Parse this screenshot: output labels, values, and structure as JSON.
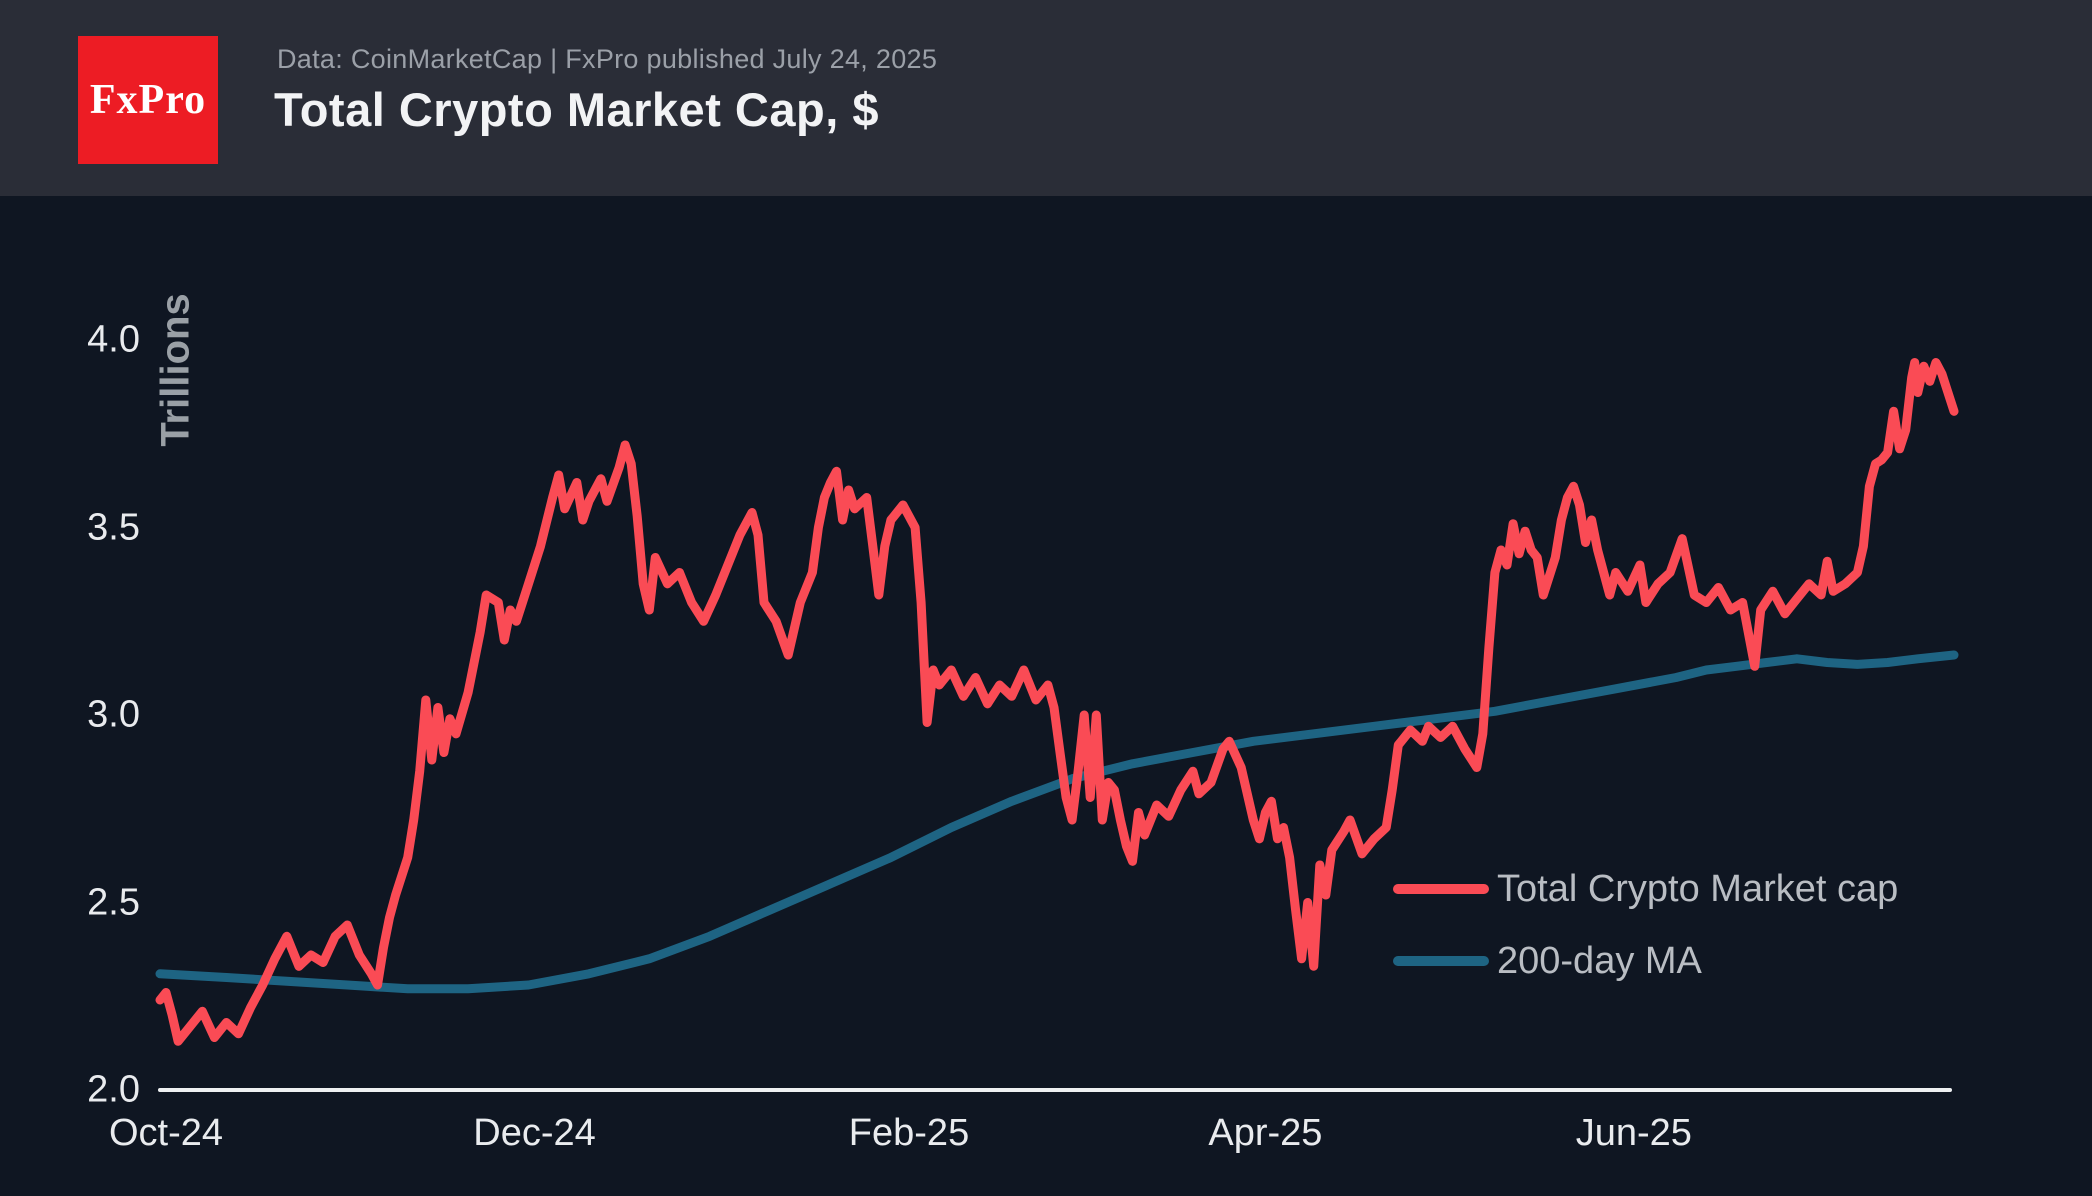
{
  "header": {
    "logo_text": "FxPro",
    "source_line": "Data: CoinMarketCap  |  FxPro published July 24, 2025",
    "title": "Total Crypto Market Cap, $"
  },
  "colors": {
    "header_bg": "#2a2d37",
    "chart_bg": "#0f1622",
    "logo_red": "#ed1c24",
    "market_cap_line": "#fa4b55",
    "ma_line": "#1e6483",
    "axis_line": "#eef0f2",
    "tick_text": "#e9ebee",
    "legend_text": "#b9bdc3"
  },
  "chart_data": {
    "type": "line",
    "title": "Total Crypto Market Cap, $",
    "ylabel": "Trillions",
    "x_unit": "days since Oct 1, 2024",
    "x_range_days": [
      -1,
      296
    ],
    "ylim": [
      2.0,
      4.0
    ],
    "grid": false,
    "legend_position": "lower right",
    "yticks": [
      {
        "label": "2.0",
        "value": 2.0
      },
      {
        "label": "2.5",
        "value": 2.5
      },
      {
        "label": "3.0",
        "value": 3.0
      },
      {
        "label": "3.5",
        "value": 3.5
      },
      {
        "label": "4.0",
        "value": 4.0
      }
    ],
    "xticks": [
      {
        "label": "Oct-24",
        "day": 0
      },
      {
        "label": "Dec-24",
        "day": 61
      },
      {
        "label": "Feb-25",
        "day": 123
      },
      {
        "label": "Apr-25",
        "day": 182
      },
      {
        "label": "Jun-25",
        "day": 243
      }
    ],
    "series": [
      {
        "name": "Total Crypto Market cap",
        "color": "#fa4b55",
        "width": 9,
        "points": [
          [
            -1,
            2.24
          ],
          [
            0,
            2.26
          ],
          [
            1,
            2.2
          ],
          [
            2,
            2.13
          ],
          [
            4,
            2.17
          ],
          [
            6,
            2.21
          ],
          [
            8,
            2.14
          ],
          [
            10,
            2.18
          ],
          [
            12,
            2.15
          ],
          [
            14,
            2.22
          ],
          [
            16,
            2.28
          ],
          [
            18,
            2.35
          ],
          [
            20,
            2.41
          ],
          [
            22,
            2.33
          ],
          [
            24,
            2.36
          ],
          [
            26,
            2.34
          ],
          [
            28,
            2.41
          ],
          [
            30,
            2.44
          ],
          [
            32,
            2.36
          ],
          [
            34,
            2.31
          ],
          [
            35,
            2.28
          ],
          [
            36,
            2.38
          ],
          [
            37,
            2.46
          ],
          [
            38,
            2.52
          ],
          [
            40,
            2.62
          ],
          [
            41,
            2.72
          ],
          [
            42,
            2.85
          ],
          [
            43,
            3.04
          ],
          [
            44,
            2.88
          ],
          [
            45,
            3.02
          ],
          [
            46,
            2.9
          ],
          [
            47,
            2.99
          ],
          [
            48,
            2.95
          ],
          [
            50,
            3.06
          ],
          [
            52,
            3.22
          ],
          [
            53,
            3.32
          ],
          [
            55,
            3.3
          ],
          [
            56,
            3.2
          ],
          [
            57,
            3.28
          ],
          [
            58,
            3.25
          ],
          [
            60,
            3.35
          ],
          [
            62,
            3.45
          ],
          [
            64,
            3.58
          ],
          [
            65,
            3.64
          ],
          [
            66,
            3.55
          ],
          [
            68,
            3.62
          ],
          [
            69,
            3.52
          ],
          [
            70,
            3.57
          ],
          [
            72,
            3.63
          ],
          [
            73,
            3.57
          ],
          [
            75,
            3.66
          ],
          [
            76,
            3.72
          ],
          [
            77,
            3.67
          ],
          [
            78,
            3.53
          ],
          [
            79,
            3.35
          ],
          [
            80,
            3.28
          ],
          [
            81,
            3.42
          ],
          [
            83,
            3.35
          ],
          [
            85,
            3.38
          ],
          [
            87,
            3.3
          ],
          [
            89,
            3.25
          ],
          [
            91,
            3.32
          ],
          [
            93,
            3.4
          ],
          [
            95,
            3.48
          ],
          [
            97,
            3.54
          ],
          [
            98,
            3.48
          ],
          [
            99,
            3.3
          ],
          [
            101,
            3.25
          ],
          [
            103,
            3.16
          ],
          [
            105,
            3.3
          ],
          [
            107,
            3.38
          ],
          [
            108,
            3.5
          ],
          [
            109,
            3.58
          ],
          [
            110,
            3.62
          ],
          [
            111,
            3.65
          ],
          [
            112,
            3.52
          ],
          [
            113,
            3.6
          ],
          [
            114,
            3.55
          ],
          [
            116,
            3.58
          ],
          [
            117,
            3.45
          ],
          [
            118,
            3.32
          ],
          [
            119,
            3.45
          ],
          [
            120,
            3.52
          ],
          [
            122,
            3.56
          ],
          [
            124,
            3.5
          ],
          [
            125,
            3.3
          ],
          [
            126,
            2.98
          ],
          [
            127,
            3.12
          ],
          [
            128,
            3.08
          ],
          [
            130,
            3.12
          ],
          [
            132,
            3.05
          ],
          [
            134,
            3.1
          ],
          [
            136,
            3.03
          ],
          [
            138,
            3.08
          ],
          [
            140,
            3.05
          ],
          [
            142,
            3.12
          ],
          [
            144,
            3.04
          ],
          [
            146,
            3.08
          ],
          [
            147,
            3.02
          ],
          [
            148,
            2.9
          ],
          [
            149,
            2.78
          ],
          [
            150,
            2.72
          ],
          [
            151,
            2.85
          ],
          [
            152,
            3.0
          ],
          [
            153,
            2.78
          ],
          [
            154,
            3.0
          ],
          [
            155,
            2.72
          ],
          [
            156,
            2.82
          ],
          [
            157,
            2.8
          ],
          [
            158,
            2.72
          ],
          [
            159,
            2.65
          ],
          [
            160,
            2.61
          ],
          [
            161,
            2.74
          ],
          [
            162,
            2.68
          ],
          [
            164,
            2.76
          ],
          [
            166,
            2.73
          ],
          [
            168,
            2.8
          ],
          [
            170,
            2.85
          ],
          [
            171,
            2.79
          ],
          [
            173,
            2.82
          ],
          [
            175,
            2.91
          ],
          [
            176,
            2.93
          ],
          [
            178,
            2.86
          ],
          [
            180,
            2.72
          ],
          [
            181,
            2.67
          ],
          [
            182,
            2.74
          ],
          [
            183,
            2.77
          ],
          [
            184,
            2.67
          ],
          [
            185,
            2.7
          ],
          [
            186,
            2.62
          ],
          [
            187,
            2.48
          ],
          [
            188,
            2.35
          ],
          [
            189,
            2.5
          ],
          [
            190,
            2.33
          ],
          [
            191,
            2.6
          ],
          [
            192,
            2.52
          ],
          [
            193,
            2.64
          ],
          [
            195,
            2.69
          ],
          [
            196,
            2.72
          ],
          [
            198,
            2.63
          ],
          [
            200,
            2.67
          ],
          [
            202,
            2.7
          ],
          [
            203,
            2.8
          ],
          [
            204,
            2.92
          ],
          [
            206,
            2.96
          ],
          [
            208,
            2.93
          ],
          [
            209,
            2.97
          ],
          [
            211,
            2.94
          ],
          [
            213,
            2.97
          ],
          [
            215,
            2.91
          ],
          [
            217,
            2.86
          ],
          [
            218,
            2.95
          ],
          [
            219,
            3.18
          ],
          [
            220,
            3.38
          ],
          [
            221,
            3.44
          ],
          [
            222,
            3.4
          ],
          [
            223,
            3.51
          ],
          [
            224,
            3.43
          ],
          [
            225,
            3.49
          ],
          [
            226,
            3.44
          ],
          [
            227,
            3.42
          ],
          [
            228,
            3.32
          ],
          [
            230,
            3.42
          ],
          [
            231,
            3.52
          ],
          [
            232,
            3.58
          ],
          [
            233,
            3.61
          ],
          [
            234,
            3.56
          ],
          [
            235,
            3.46
          ],
          [
            236,
            3.52
          ],
          [
            237,
            3.44
          ],
          [
            239,
            3.32
          ],
          [
            240,
            3.38
          ],
          [
            242,
            3.33
          ],
          [
            244,
            3.4
          ],
          [
            245,
            3.3
          ],
          [
            247,
            3.35
          ],
          [
            249,
            3.38
          ],
          [
            251,
            3.47
          ],
          [
            253,
            3.32
          ],
          [
            255,
            3.3
          ],
          [
            257,
            3.34
          ],
          [
            259,
            3.28
          ],
          [
            261,
            3.3
          ],
          [
            263,
            3.13
          ],
          [
            264,
            3.28
          ],
          [
            266,
            3.33
          ],
          [
            268,
            3.27
          ],
          [
            270,
            3.31
          ],
          [
            272,
            3.35
          ],
          [
            274,
            3.32
          ],
          [
            275,
            3.41
          ],
          [
            276,
            3.33
          ],
          [
            278,
            3.35
          ],
          [
            280,
            3.38
          ],
          [
            281,
            3.45
          ],
          [
            282,
            3.61
          ],
          [
            283,
            3.67
          ],
          [
            284,
            3.68
          ],
          [
            285,
            3.7
          ],
          [
            286,
            3.81
          ],
          [
            287,
            3.71
          ],
          [
            288,
            3.76
          ],
          [
            289,
            3.9
          ],
          [
            289.5,
            3.94
          ],
          [
            290,
            3.86
          ],
          [
            291,
            3.93
          ],
          [
            292,
            3.89
          ],
          [
            293,
            3.94
          ],
          [
            294,
            3.91
          ],
          [
            296,
            3.81
          ]
        ]
      },
      {
        "name": "200-day MA",
        "color": "#1e6483",
        "width": 9,
        "points": [
          [
            -1,
            2.31
          ],
          [
            10,
            2.3
          ],
          [
            20,
            2.29
          ],
          [
            30,
            2.28
          ],
          [
            40,
            2.27
          ],
          [
            50,
            2.27
          ],
          [
            60,
            2.28
          ],
          [
            70,
            2.31
          ],
          [
            80,
            2.35
          ],
          [
            90,
            2.41
          ],
          [
            100,
            2.48
          ],
          [
            110,
            2.55
          ],
          [
            120,
            2.62
          ],
          [
            130,
            2.7
          ],
          [
            140,
            2.77
          ],
          [
            150,
            2.83
          ],
          [
            160,
            2.87
          ],
          [
            170,
            2.9
          ],
          [
            180,
            2.93
          ],
          [
            190,
            2.95
          ],
          [
            200,
            2.97
          ],
          [
            210,
            2.99
          ],
          [
            220,
            3.01
          ],
          [
            230,
            3.04
          ],
          [
            240,
            3.07
          ],
          [
            250,
            3.1
          ],
          [
            255,
            3.12
          ],
          [
            260,
            3.13
          ],
          [
            265,
            3.14
          ],
          [
            270,
            3.15
          ],
          [
            275,
            3.14
          ],
          [
            280,
            3.135
          ],
          [
            285,
            3.14
          ],
          [
            290,
            3.15
          ],
          [
            296,
            3.16
          ]
        ]
      }
    ]
  }
}
